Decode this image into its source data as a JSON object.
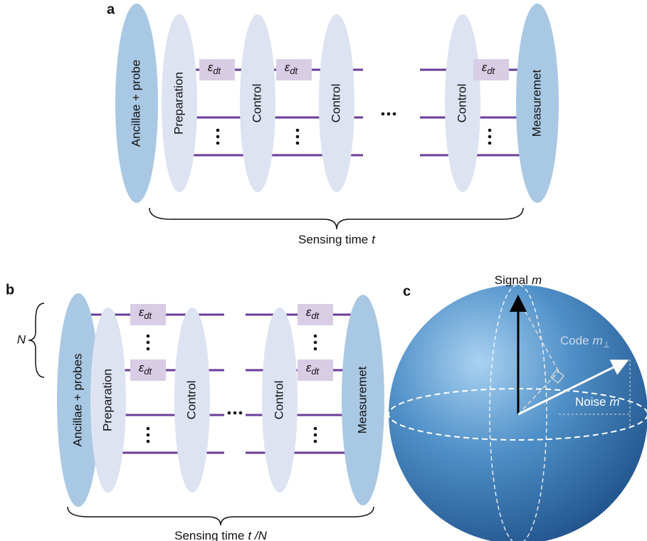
{
  "panel_a": {
    "label": "a",
    "blocks": [
      "Ancillae + probe",
      "Preparation",
      "Control",
      "Control",
      "Control",
      "Measuremet"
    ],
    "noise": {
      "symbol": "ε",
      "subscript": "dt"
    },
    "caption": {
      "text": "Sensing time",
      "variable": "t"
    }
  },
  "panel_b": {
    "label": "b",
    "group": "N",
    "blocks": [
      "Ancillae + probes",
      "Preparation",
      "Control",
      "Control",
      "Measuremet"
    ],
    "noise": {
      "symbol": "ε",
      "subscript": "dt"
    },
    "caption": {
      "text": "Sensing time",
      "variable": "t /N"
    }
  },
  "panel_c": {
    "label": "c",
    "signal": {
      "text": "Signal",
      "variable": "m"
    },
    "code": {
      "text": "Code",
      "variable": "m",
      "subscript": "⊥"
    },
    "noise": {
      "text": "Noise",
      "variable": "m"
    }
  }
}
